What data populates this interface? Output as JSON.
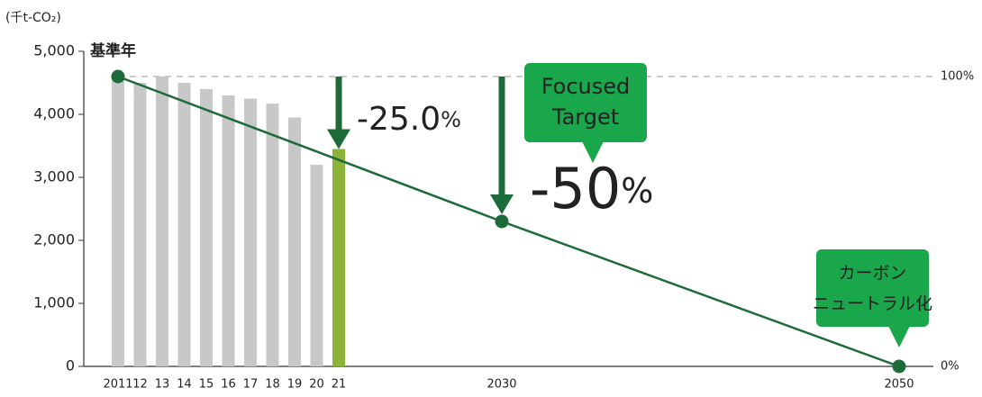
{
  "chart_data": {
    "type": "bar",
    "y_axis_label": "(千t-CO₂)",
    "categories": [
      "2011",
      "12",
      "13",
      "14",
      "15",
      "16",
      "17",
      "18",
      "19",
      "20",
      "21",
      "2030",
      "2050"
    ],
    "values": [
      4600,
      4500,
      4600,
      4500,
      4400,
      4300,
      4250,
      4170,
      3950,
      3200,
      3450,
      null,
      null
    ],
    "colors": [
      "#c8c8c8",
      "#c8c8c8",
      "#c8c8c8",
      "#c8c8c8",
      "#c8c8c8",
      "#c8c8c8",
      "#c8c8c8",
      "#c8c8c8",
      "#c8c8c8",
      "#c8c8c8",
      "#8db33a",
      null,
      null
    ],
    "line": {
      "x": [
        "2011",
        "2030",
        "2050"
      ],
      "values": [
        4600,
        2300,
        0
      ],
      "color": "#1e6b3a"
    },
    "ylim": [
      0,
      5000
    ],
    "yticks": [
      0,
      {
        "value": 1000,
        "label": "1,000"
      },
      {
        "value": 2000,
        "label": "2,000"
      },
      {
        "value": 3000,
        "label": "3,000"
      },
      {
        "value": 4000,
        "label": "4,000"
      },
      {
        "value": 5000,
        "label": "5,000"
      }
    ],
    "y2lim": [
      0,
      108.7
    ],
    "y2ticks": [
      {
        "value": 0,
        "label": "0%"
      },
      {
        "value": 100,
        "label": "100%"
      }
    ],
    "annotations": {
      "base_year": "基準年",
      "reduction_2021": "-25.0",
      "reduction_2021_unit": "%",
      "reduction_2030": "-50",
      "reduction_2030_unit": "%",
      "target_2030": [
        "Focused",
        "Target"
      ],
      "target_2050": [
        "カーボン",
        "ニュートラル化"
      ]
    }
  }
}
